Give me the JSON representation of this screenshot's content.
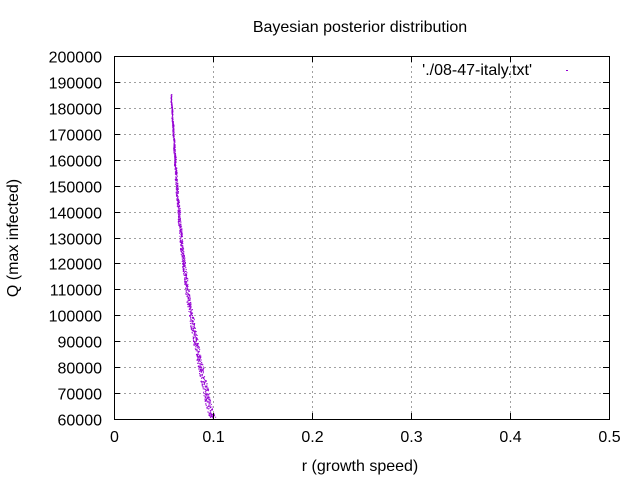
{
  "chart_data": {
    "type": "scatter",
    "title": "Bayesian posterior distribution",
    "xlabel": "r (growth speed)",
    "ylabel": "Q (max infected)",
    "xlim": [
      0,
      0.5
    ],
    "ylim": [
      60000,
      200000
    ],
    "xticks": [
      0,
      0.1,
      0.2,
      0.3,
      0.4,
      0.5
    ],
    "xtick_labels": [
      "0",
      "0.1",
      "0.2",
      "0.3",
      "0.4",
      "0.5"
    ],
    "yticks": [
      60000,
      70000,
      80000,
      90000,
      100000,
      110000,
      120000,
      130000,
      140000,
      150000,
      160000,
      170000,
      180000,
      190000,
      200000
    ],
    "ytick_labels": [
      "60000",
      "70000",
      "80000",
      "90000",
      "100000",
      "110000",
      "120000",
      "130000",
      "140000",
      "150000",
      "160000",
      "170000",
      "180000",
      "190000",
      "200000"
    ],
    "grid": true,
    "legend_position": "top-right",
    "series": [
      {
        "name": "'./08-47-italy.txt'",
        "color": "#9400d3",
        "points": [
          [
            0.058,
            185000
          ],
          [
            0.058,
            182000
          ],
          [
            0.059,
            179000
          ],
          [
            0.059,
            176000
          ],
          [
            0.06,
            173000
          ],
          [
            0.06,
            170000
          ],
          [
            0.061,
            167000
          ],
          [
            0.061,
            164000
          ],
          [
            0.062,
            161000
          ],
          [
            0.062,
            158000
          ],
          [
            0.063,
            155000
          ],
          [
            0.063,
            152000
          ],
          [
            0.064,
            149000
          ],
          [
            0.064,
            146000
          ],
          [
            0.065,
            143000
          ],
          [
            0.066,
            140000
          ],
          [
            0.066,
            137000
          ],
          [
            0.067,
            134000
          ],
          [
            0.068,
            131000
          ],
          [
            0.068,
            128000
          ],
          [
            0.069,
            125000
          ],
          [
            0.07,
            122000
          ],
          [
            0.071,
            119000
          ],
          [
            0.072,
            116000
          ],
          [
            0.073,
            113000
          ],
          [
            0.074,
            110000
          ],
          [
            0.075,
            107000
          ],
          [
            0.076,
            104000
          ],
          [
            0.078,
            101000
          ],
          [
            0.079,
            98000
          ],
          [
            0.08,
            95000
          ],
          [
            0.082,
            92000
          ],
          [
            0.083,
            89000
          ],
          [
            0.085,
            86000
          ],
          [
            0.086,
            83000
          ],
          [
            0.088,
            80000
          ],
          [
            0.089,
            77000
          ],
          [
            0.091,
            74000
          ],
          [
            0.093,
            71000
          ],
          [
            0.094,
            68000
          ],
          [
            0.096,
            65000
          ],
          [
            0.098,
            62000
          ],
          [
            0.1,
            60500
          ]
        ]
      }
    ]
  }
}
